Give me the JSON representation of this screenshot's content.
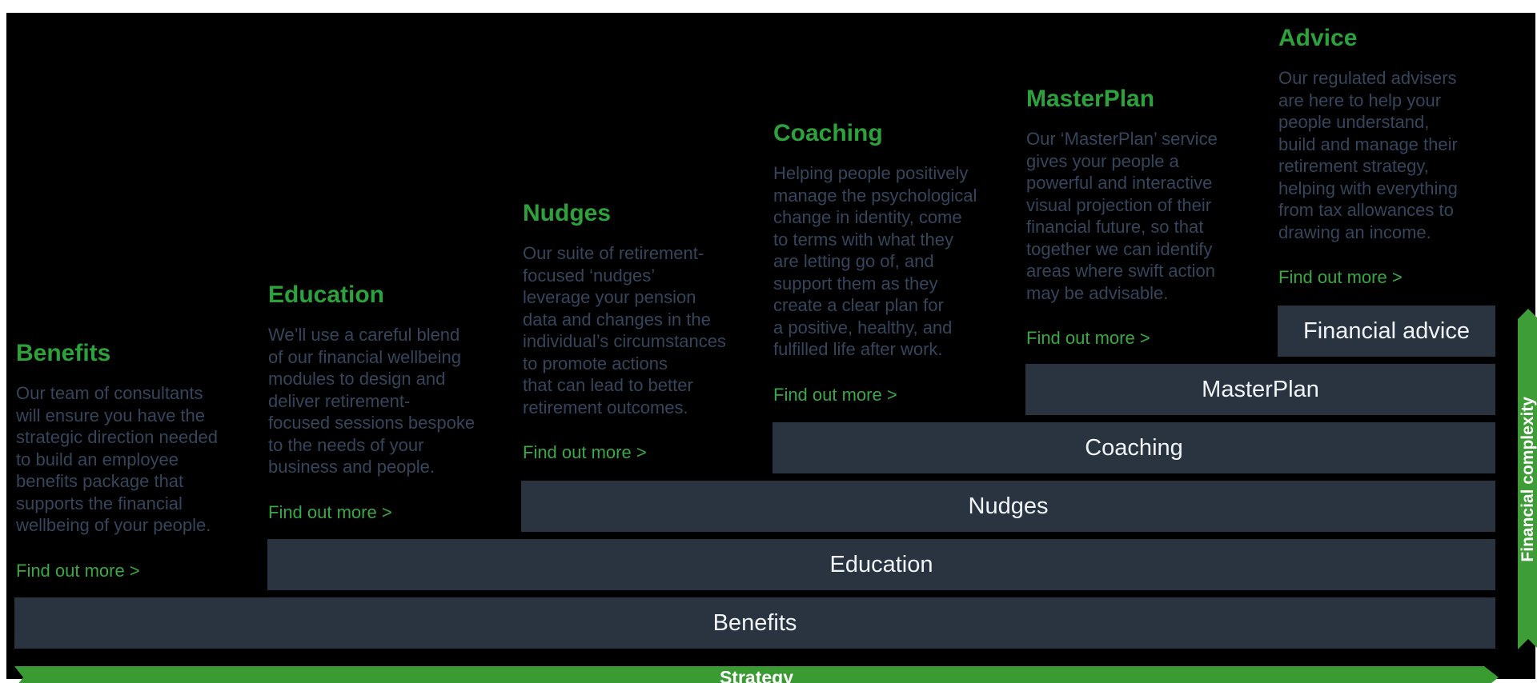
{
  "colors": {
    "canvas_bg": "#000000",
    "heading_green": "#2da23c",
    "link_green": "#3aa844",
    "body_text": "#35455b",
    "bar_fill": "#293440",
    "bar_text": "#f0f4f6",
    "strategy_green": "#3a9b33",
    "ribbon_green": "#3f9d38"
  },
  "columns": [
    {
      "title": "Benefits",
      "body": "Our team of consultants\nwill ensure you have the\nstrategic direction needed\nto build an employee\nbenefits package that\nsupports the financial\nwellbeing of your people.",
      "link": "Find out more >"
    },
    {
      "title": "Education",
      "body": "We’ll use a careful blend\nof our financial wellbeing\nmodules to design and\ndeliver retirement-\nfocused sessions bespoke\nto the needs of your\nbusiness and people.",
      "link": "Find out more >"
    },
    {
      "title": "Nudges",
      "body": "Our suite of retirement-\nfocused ‘nudges’\nleverage your pension\ndata and changes in the\nindividual’s circumstances\nto promote actions\nthat can lead to better\nretirement outcomes.",
      "link": "Find out more >"
    },
    {
      "title": "Coaching",
      "body": "Helping people positively\nmanage the psychological\nchange in identity, come\nto terms with what they\nare letting go of, and\nsupport them as they\ncreate a clear plan for\na positive, healthy, and\nfulfilled life after work.",
      "link": "Find out more >"
    },
    {
      "title": "MasterPlan",
      "body": "Our ‘MasterPlan’ service\ngives your people a\npowerful and interactive\nvisual projection of their\nfinancial future, so that\ntogether we can identify\nareas where swift action\nmay be advisable.",
      "link": "Find out more >"
    },
    {
      "title": "Advice",
      "body": "Our regulated advisers\nare here to help your\npeople understand,\nbuild and manage their\nretirement strategy,\nhelping with everything\nfrom tax allowances to\ndrawing an income.",
      "link": "Find out more >"
    }
  ],
  "bars": [
    {
      "label": "Financial advice"
    },
    {
      "label": "MasterPlan"
    },
    {
      "label": "Coaching"
    },
    {
      "label": "Nudges"
    },
    {
      "label": "Education"
    },
    {
      "label": "Benefits"
    }
  ],
  "strategy_bar": {
    "label": "Strategy"
  },
  "complexity_ribbon": {
    "label": "Financial complexity"
  }
}
